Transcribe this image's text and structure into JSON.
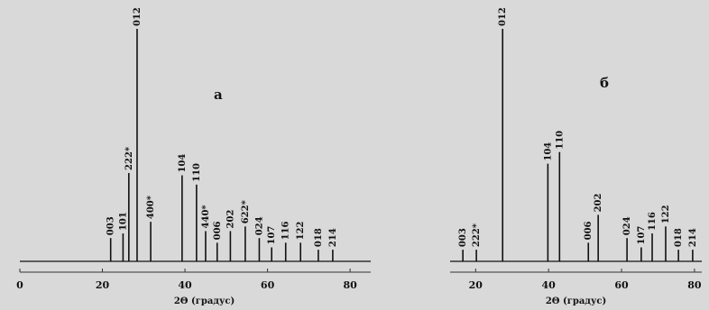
{
  "chart_data": [
    {
      "type": "stem",
      "label": "а",
      "x_label": "2Θ (градус)",
      "color": "#111111",
      "xlim": [
        0,
        85
      ],
      "xticks": [
        0,
        20,
        40,
        60,
        80
      ],
      "ylim": [
        0,
        100
      ],
      "categories": [
        "003",
        "101",
        "222*",
        "012",
        "400*",
        "104",
        "110",
        "440*",
        "006",
        "202",
        "622*",
        "024",
        "107",
        "116",
        "122",
        "018",
        "214"
      ],
      "x": [
        22,
        25,
        26.4,
        28.4,
        31.7,
        39.3,
        42.8,
        45,
        47.8,
        51,
        54.6,
        58,
        61,
        64.4,
        68,
        72.3,
        75.8
      ],
      "values": [
        10,
        12,
        38,
        100,
        17,
        37,
        33,
        13,
        8,
        13,
        15,
        10,
        6,
        8,
        8,
        5,
        5
      ]
    },
    {
      "type": "stem",
      "label": "б",
      "x_label": "2Θ (градус)",
      "color": "#111111",
      "xlim": [
        13,
        82
      ],
      "xticks": [
        20,
        40,
        60,
        80
      ],
      "ylim": [
        0,
        100
      ],
      "categories": [
        "003",
        "222*",
        "012",
        "104",
        "110",
        "006",
        "202",
        "024",
        "107",
        "116",
        "122",
        "018",
        "214"
      ],
      "x": [
        16.5,
        20.2,
        27.4,
        39.8,
        43,
        50.9,
        53.6,
        61.5,
        65.4,
        68.4,
        72.1,
        75.6,
        79.5
      ],
      "values": [
        5,
        5,
        100,
        42,
        47,
        8,
        20,
        10,
        6,
        12,
        15,
        5,
        5
      ]
    }
  ]
}
